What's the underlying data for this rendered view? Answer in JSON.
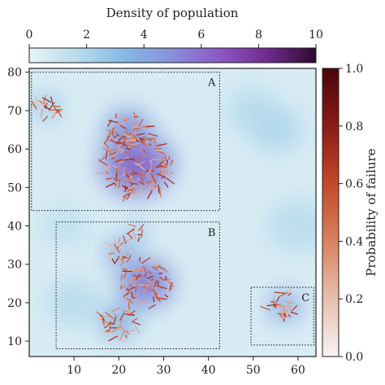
{
  "chart_data": {
    "type": "heatmap",
    "top_colorbar": {
      "label": "Density of population",
      "range": [
        0,
        10
      ],
      "ticks": [
        "0",
        "2",
        "4",
        "6",
        "8",
        "10"
      ],
      "colors": [
        "#e8f4f7",
        "#b7dced",
        "#85b9e3",
        "#8a8fdb",
        "#8d57c4",
        "#6f2b8c",
        "#2d0a2e"
      ]
    },
    "right_colorbar": {
      "label": "Probability of failure",
      "range": [
        0,
        1
      ],
      "ticks": [
        "0.0",
        "0.2",
        "0.4",
        "0.6",
        "0.8",
        "1.0"
      ],
      "colors": [
        "#f7f3f4",
        "#e9bfae",
        "#d98160",
        "#c2492a",
        "#8c1a17",
        "#4a0509"
      ]
    },
    "xaxis": {
      "range": [
        0,
        64
      ],
      "ticks": [
        10,
        20,
        30,
        40,
        50,
        60
      ]
    },
    "yaxis": {
      "range": [
        6,
        81
      ],
      "ticks": [
        10,
        20,
        30,
        40,
        50,
        60,
        70,
        80
      ]
    },
    "regions": [
      {
        "label": "A",
        "x": [
          0.5,
          42.5
        ],
        "y": [
          44,
          80
        ]
      },
      {
        "label": "B",
        "x": [
          6,
          42.5
        ],
        "y": [
          8,
          41
        ]
      },
      {
        "label": "C",
        "x": [
          49.5,
          63.5
        ],
        "y": [
          9,
          24
        ]
      }
    ],
    "density_clusters": [
      {
        "cx": 24,
        "cy": 56,
        "r": 8,
        "value": 6.5
      },
      {
        "cx": 22,
        "cy": 65,
        "r": 5,
        "value": 5.5
      },
      {
        "cx": 4,
        "cy": 71,
        "r": 3,
        "value": 3.5
      },
      {
        "cx": 26,
        "cy": 25,
        "r": 6,
        "value": 6.0
      },
      {
        "cx": 20,
        "cy": 33,
        "r": 3,
        "value": 5.0
      },
      {
        "cx": 24,
        "cy": 38,
        "r": 2,
        "value": 5.0
      },
      {
        "cx": 20,
        "cy": 15,
        "r": 4,
        "value": 4.5
      },
      {
        "cx": 57,
        "cy": 19,
        "r": 3.5,
        "value": 5.0
      }
    ]
  }
}
